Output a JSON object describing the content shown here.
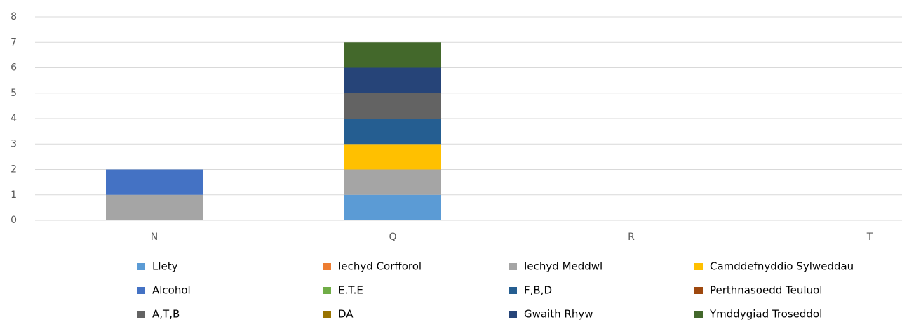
{
  "chart_data": {
    "type": "stacked_bar",
    "categories": [
      "N",
      "Q",
      "R",
      "T"
    ],
    "series": [
      {
        "name": "Llety",
        "color": "#5b9bd5",
        "values": [
          0,
          1,
          0,
          0
        ]
      },
      {
        "name": "Iechyd Corfforol",
        "color": "#ed7d31",
        "values": [
          0,
          0,
          0,
          0
        ]
      },
      {
        "name": "Iechyd Meddwl",
        "color": "#a5a5a5",
        "values": [
          1,
          1,
          0,
          0
        ]
      },
      {
        "name": "Camddefnyddio Sylweddau",
        "color": "#ffc000",
        "values": [
          0,
          1,
          0,
          0
        ]
      },
      {
        "name": "Alcohol",
        "color": "#4472c4",
        "values": [
          1,
          0,
          0,
          0
        ]
      },
      {
        "name": "E.T.E",
        "color": "#70ad47",
        "values": [
          0,
          0,
          0,
          0
        ]
      },
      {
        "name": "F,B,D",
        "color": "#255e91",
        "values": [
          0,
          1,
          0,
          0
        ]
      },
      {
        "name": "Perthnasoedd Teuluol",
        "color": "#9e480e",
        "values": [
          0,
          0,
          0,
          0
        ]
      },
      {
        "name": "A,T,B",
        "color": "#636363",
        "values": [
          0,
          1,
          0,
          0
        ]
      },
      {
        "name": "DA",
        "color": "#997300",
        "values": [
          0,
          0,
          0,
          0
        ]
      },
      {
        "name": "Gwaith Rhyw",
        "color": "#264478",
        "values": [
          0,
          1,
          0,
          0
        ]
      },
      {
        "name": "Ymddygiad Troseddol",
        "color": "#43682b",
        "values": [
          0,
          1,
          0,
          0
        ]
      }
    ],
    "ylim": [
      0,
      8
    ],
    "yticks": [
      0,
      1,
      2,
      3,
      4,
      5,
      6,
      7,
      8
    ],
    "grid": true,
    "legend": "bottom"
  }
}
